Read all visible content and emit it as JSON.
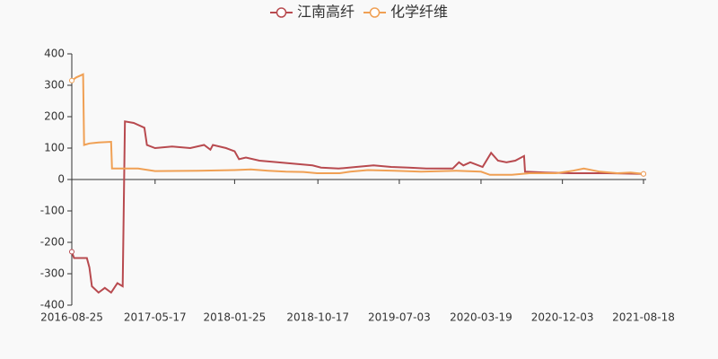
{
  "chart_data": {
    "type": "line",
    "series": [
      {
        "name": "江南高纤",
        "color": "#b84a4f",
        "x": [
          "2016-08-25",
          "2016-09-01",
          "2016-10-12",
          "2016-10-20",
          "2016-10-28",
          "2016-11-18",
          "2016-12-08",
          "2016-12-28",
          "2017-01-17",
          "2017-02-03",
          "2017-02-10",
          "2017-03-10",
          "2017-04-13",
          "2017-04-21",
          "2017-05-17",
          "2017-07-10",
          "2017-09-06",
          "2017-10-20",
          "2017-11-09",
          "2017-11-17",
          "2017-12-29",
          "2018-01-25",
          "2018-02-08",
          "2018-03-02",
          "2018-04-14",
          "2018-06-10",
          "2018-08-05",
          "2018-09-30",
          "2018-10-27",
          "2018-12-22",
          "2019-02-16",
          "2019-04-12",
          "2019-06-07",
          "2019-08-02",
          "2019-09-27",
          "2019-12-20",
          "2020-01-09",
          "2020-01-23",
          "2020-02-14",
          "2020-03-24",
          "2020-04-20",
          "2020-05-12",
          "2020-06-08",
          "2020-07-06",
          "2020-08-03",
          "2020-08-06",
          "2020-10-10",
          "2021-01-02",
          "2021-04-25",
          "2021-08-18"
        ],
        "values": [
          -230,
          -250,
          -250,
          -280,
          -340,
          -360,
          -345,
          -360,
          -330,
          -340,
          185,
          180,
          165,
          110,
          100,
          105,
          100,
          110,
          95,
          110,
          100,
          90,
          65,
          70,
          60,
          55,
          50,
          45,
          38,
          35,
          40,
          45,
          40,
          38,
          35,
          35,
          55,
          45,
          55,
          40,
          85,
          60,
          55,
          60,
          75,
          25,
          22,
          20,
          20,
          18
        ]
      },
      {
        "name": "化学纤维",
        "color": "#f0a054",
        "x": [
          "2016-08-25",
          "2016-09-08",
          "2016-09-30",
          "2016-10-03",
          "2016-10-20",
          "2016-11-18",
          "2016-12-28",
          "2016-12-31",
          "2017-02-10",
          "2017-03-24",
          "2017-05-17",
          "2017-10-03",
          "2018-01-25",
          "2018-03-17",
          "2018-05-12",
          "2018-07-07",
          "2018-09-01",
          "2018-10-14",
          "2018-12-25",
          "2019-01-28",
          "2019-03-25",
          "2019-06-18",
          "2019-09-10",
          "2019-12-31",
          "2020-03-19",
          "2020-04-16",
          "2020-06-25",
          "2020-08-20",
          "2020-11-12",
          "2021-01-06",
          "2021-02-09",
          "2021-04-01",
          "2021-05-27",
          "2021-07-08",
          "2021-08-18"
        ],
        "values": [
          315,
          325,
          335,
          110,
          115,
          118,
          120,
          35,
          35,
          35,
          27,
          28,
          30,
          32,
          28,
          25,
          24,
          20,
          20,
          25,
          30,
          28,
          25,
          28,
          25,
          15,
          15,
          20,
          20,
          28,
          35,
          25,
          20,
          22,
          18
        ]
      }
    ],
    "xlim": [
      "2016-08-25",
      "2021-08-18"
    ],
    "xticks": [
      "2016-08-25",
      "2017-05-17",
      "2018-01-25",
      "2018-10-17",
      "2019-07-03",
      "2020-03-19",
      "2020-12-03",
      "2021-08-18"
    ],
    "ylim": [
      -400,
      400
    ],
    "yticks": [
      -400,
      -300,
      -200,
      -100,
      0,
      100,
      200,
      300,
      400
    ],
    "legend": "top"
  }
}
